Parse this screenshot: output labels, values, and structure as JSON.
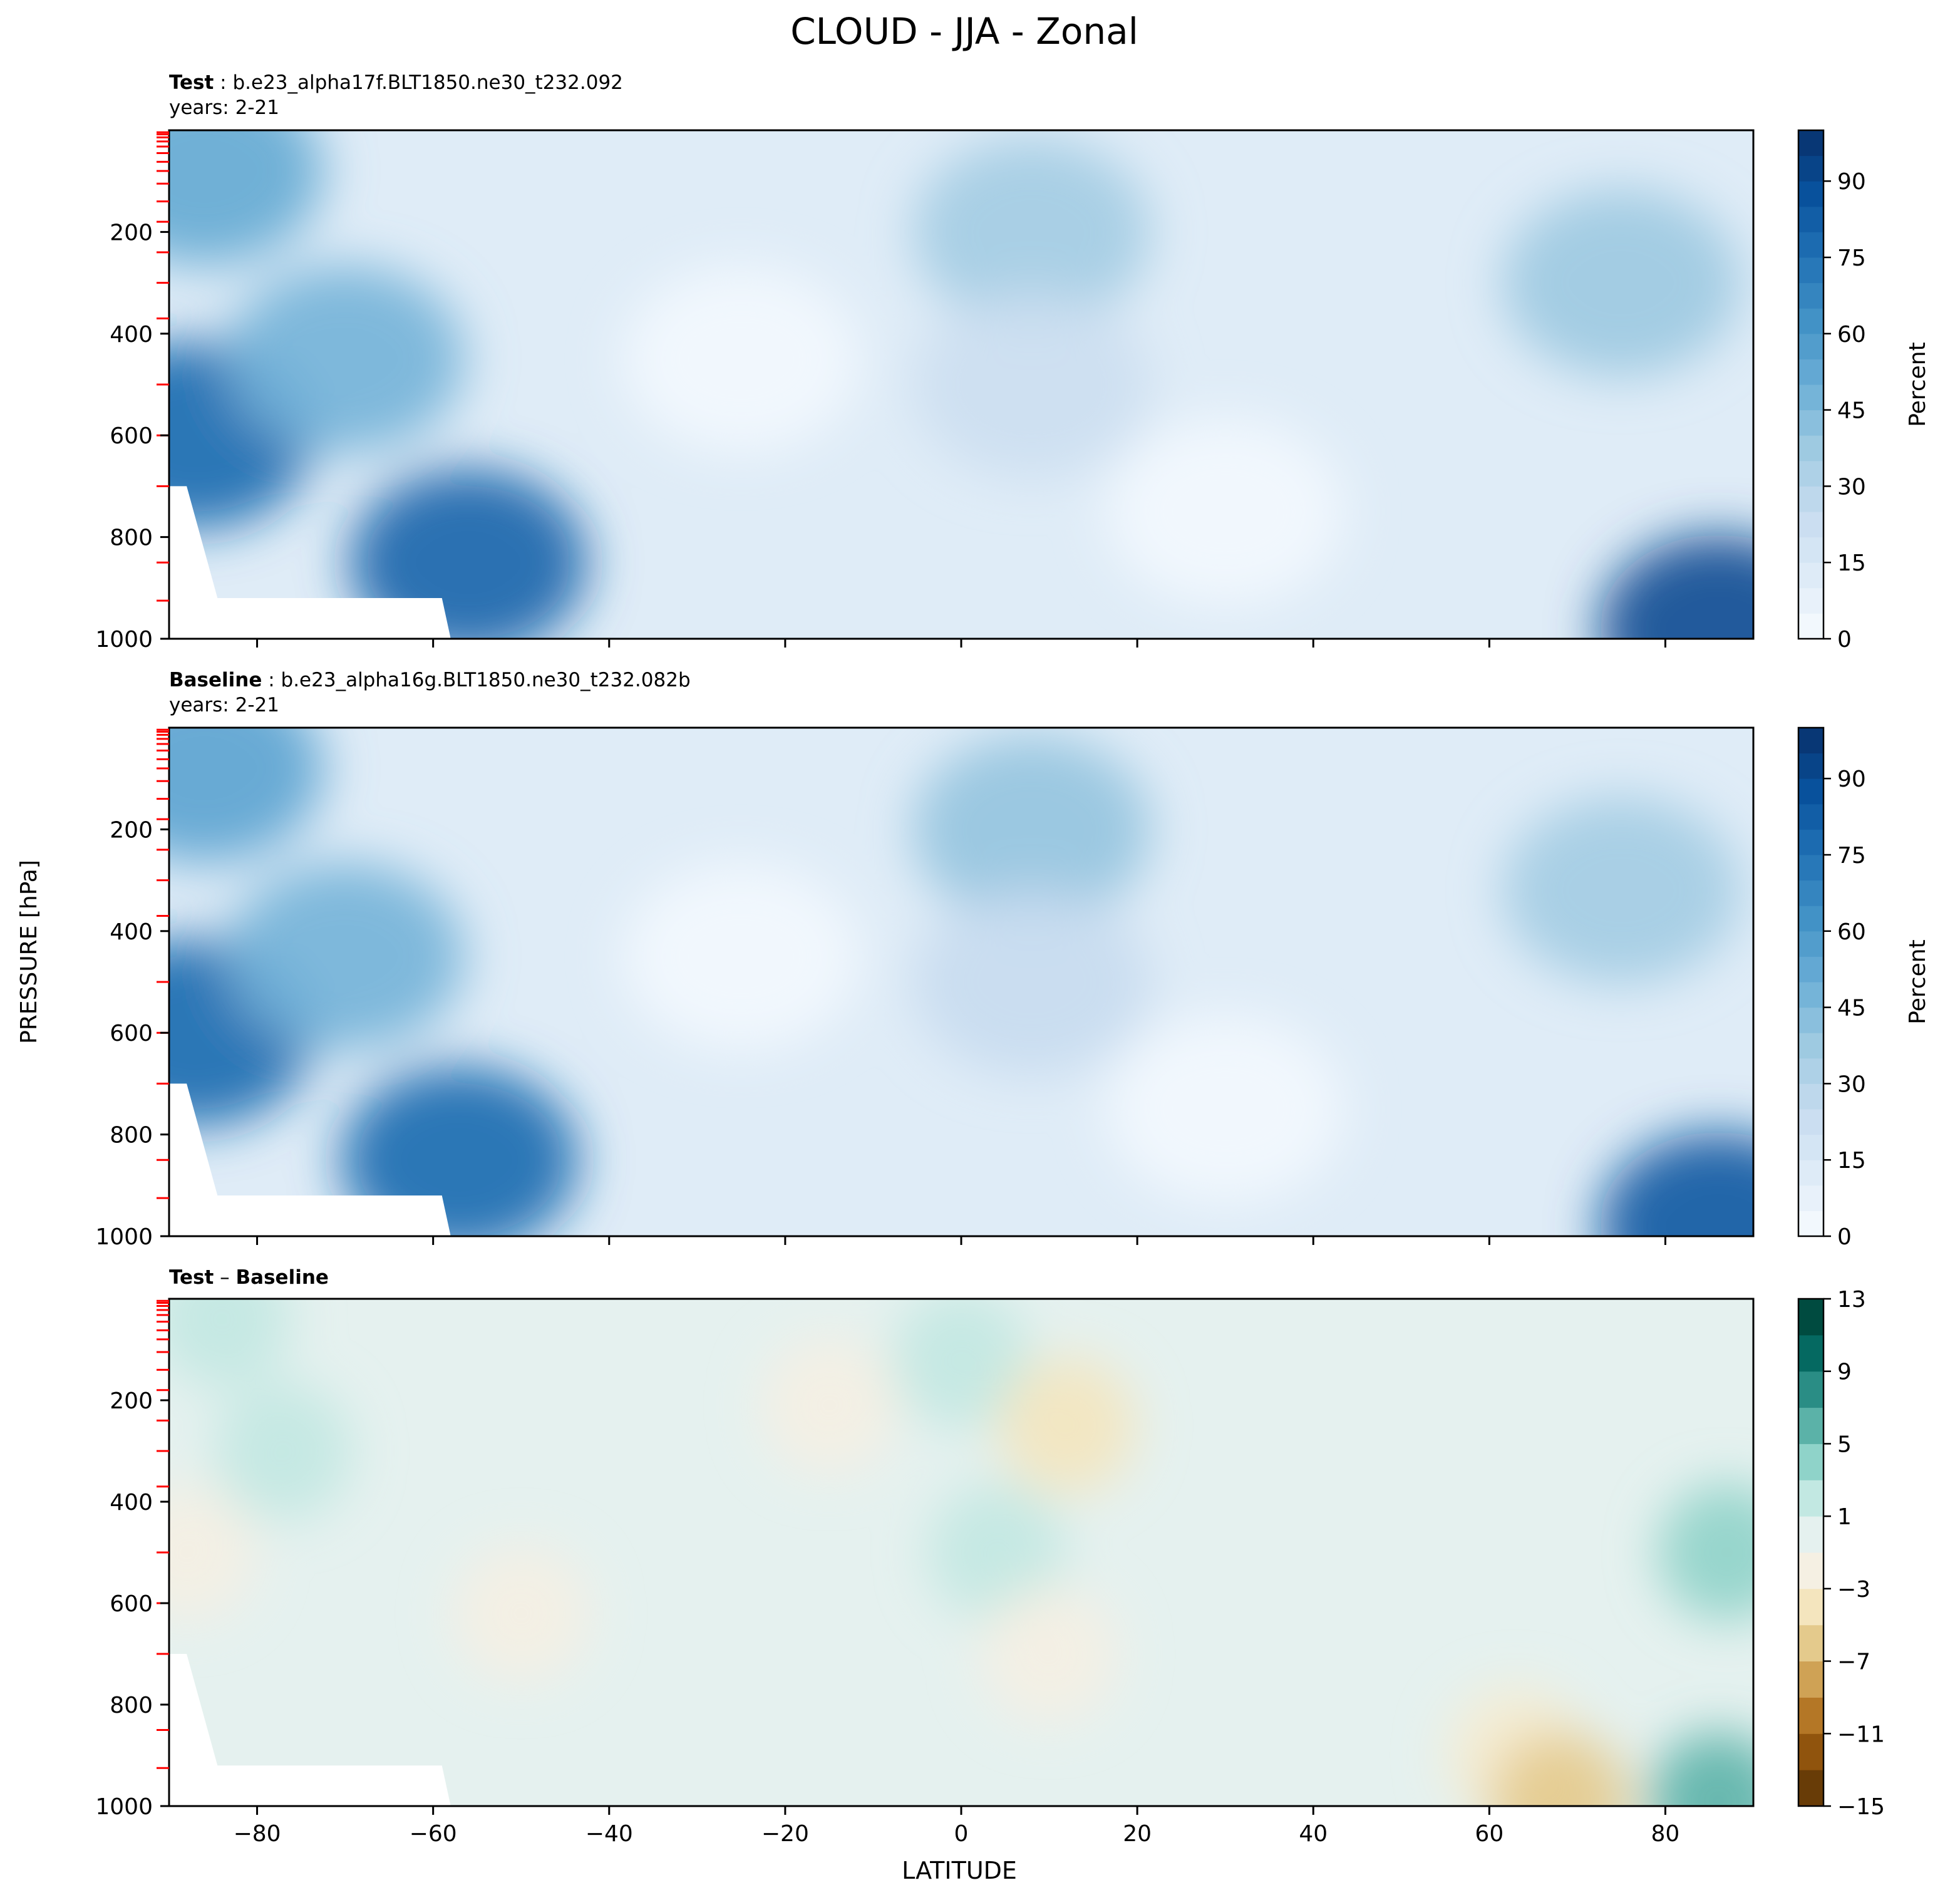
{
  "figure": {
    "title": "CLOUD - JJA - Zonal",
    "xlabel": "LATITUDE",
    "ylabel": "PRESSURE [hPa]"
  },
  "chart_data": [
    {
      "type": "heatmap",
      "panel": "test",
      "label_bold": "Test",
      "label_rest": " : b.e23_alpha17f.BLT1850.ne30_t232.092",
      "years": "years: 2-21",
      "x_ticks": [
        -80,
        -60,
        -40,
        -20,
        0,
        20,
        40,
        60,
        80
      ],
      "xlim": [
        -90,
        90
      ],
      "y_ticks": [
        200,
        400,
        600,
        800,
        1000
      ],
      "ylim": [
        1000,
        0
      ],
      "colorbar": {
        "label": "Percent",
        "ticks": [
          0,
          15,
          30,
          45,
          60,
          75,
          90
        ],
        "range": [
          0,
          100
        ],
        "colormap": "Blues"
      },
      "features": [
        {
          "lat": -86,
          "p": 80,
          "value": 52
        },
        {
          "lat": -87,
          "p": 600,
          "value": 78
        },
        {
          "lat": -70,
          "p": 450,
          "value": 48
        },
        {
          "lat": -56,
          "p": 850,
          "value": 80
        },
        {
          "lat": -25,
          "p": 450,
          "value": 2
        },
        {
          "lat": 8,
          "p": 200,
          "value": 36
        },
        {
          "lat": 8,
          "p": 500,
          "value": 22
        },
        {
          "lat": 30,
          "p": 750,
          "value": 2
        },
        {
          "lat": 75,
          "p": 300,
          "value": 38
        },
        {
          "lat": 86,
          "p": 980,
          "value": 90
        }
      ]
    },
    {
      "type": "heatmap",
      "panel": "baseline",
      "label_bold": "Baseline",
      "label_rest": " : b.e23_alpha16g.BLT1850.ne30_t232.082b",
      "years": "years: 2-21",
      "x_ticks": [
        -80,
        -60,
        -40,
        -20,
        0,
        20,
        40,
        60,
        80
      ],
      "xlim": [
        -90,
        90
      ],
      "y_ticks": [
        200,
        400,
        600,
        800,
        1000
      ],
      "ylim": [
        1000,
        0
      ],
      "colorbar": {
        "label": "Percent",
        "ticks": [
          0,
          15,
          30,
          45,
          60,
          75,
          90
        ],
        "range": [
          0,
          100
        ],
        "colormap": "Blues"
      },
      "features": [
        {
          "lat": -86,
          "p": 80,
          "value": 55
        },
        {
          "lat": -87,
          "p": 600,
          "value": 78
        },
        {
          "lat": -70,
          "p": 450,
          "value": 48
        },
        {
          "lat": -57,
          "p": 850,
          "value": 78
        },
        {
          "lat": -25,
          "p": 450,
          "value": 2
        },
        {
          "lat": 8,
          "p": 200,
          "value": 40
        },
        {
          "lat": 8,
          "p": 500,
          "value": 24
        },
        {
          "lat": 30,
          "p": 750,
          "value": 2
        },
        {
          "lat": 75,
          "p": 320,
          "value": 36
        },
        {
          "lat": 86,
          "p": 980,
          "value": 85
        }
      ]
    },
    {
      "type": "heatmap",
      "panel": "difference",
      "label_bold": "Test",
      "label_mid": " – ",
      "label_bold2": "Baseline",
      "x_ticks": [
        -80,
        -60,
        -40,
        -20,
        0,
        20,
        40,
        60,
        80
      ],
      "xlim": [
        -90,
        90
      ],
      "y_ticks": [
        200,
        400,
        600,
        800,
        1000
      ],
      "ylim": [
        1000,
        0
      ],
      "colorbar": {
        "ticks": [
          13,
          9,
          5,
          1,
          -3,
          -7,
          -11,
          -15
        ],
        "range": [
          -15,
          13
        ],
        "colormap": "BrBG"
      },
      "features": [
        {
          "lat": -84,
          "p": 40,
          "value": 2
        },
        {
          "lat": -77,
          "p": 300,
          "value": 2
        },
        {
          "lat": -88,
          "p": 500,
          "value": -2
        },
        {
          "lat": -50,
          "p": 620,
          "value": -2
        },
        {
          "lat": -15,
          "p": 210,
          "value": -2
        },
        {
          "lat": 0,
          "p": 120,
          "value": 2
        },
        {
          "lat": 12,
          "p": 250,
          "value": -4
        },
        {
          "lat": 4,
          "p": 500,
          "value": 2
        },
        {
          "lat": 10,
          "p": 700,
          "value": -2
        },
        {
          "lat": 63,
          "p": 900,
          "value": -3
        },
        {
          "lat": 68,
          "p": 990,
          "value": -6
        },
        {
          "lat": 87,
          "p": 500,
          "value": 4
        },
        {
          "lat": 86,
          "p": 990,
          "value": 6
        }
      ]
    }
  ]
}
